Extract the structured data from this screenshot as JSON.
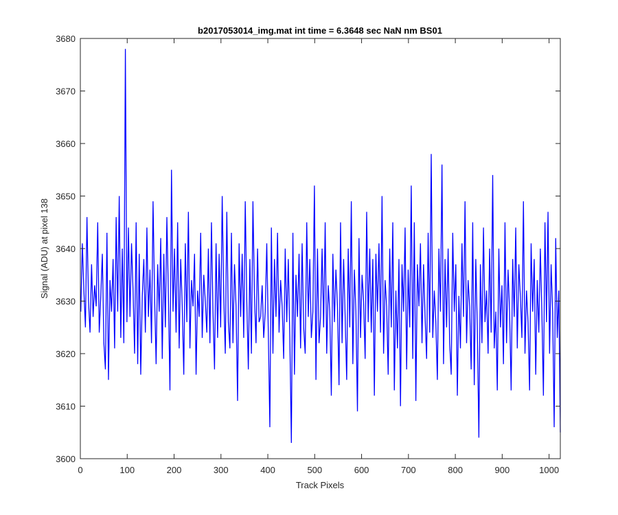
{
  "chart_data": {
    "type": "line",
    "title": "b2017053014_img.mat int time = 6.3648 sec  NaN nm BS01",
    "xlabel": "Track Pixels",
    "ylabel": "Signal (ADU) at pixel 138",
    "xlim": [
      0,
      1024
    ],
    "ylim": [
      3600,
      3680
    ],
    "xticks": [
      0,
      100,
      200,
      300,
      400,
      500,
      600,
      700,
      800,
      900,
      1000
    ],
    "yticks": [
      3600,
      3610,
      3620,
      3630,
      3640,
      3650,
      3660,
      3670,
      3680
    ],
    "grid": false,
    "legend": "none",
    "series_color": "#0000ff",
    "series": [
      {
        "x_start": 1,
        "x_step": 1,
        "values_note": "approximate noisy trace around 3630 ADU, sampled every ~4 pixels",
        "values": [
          3628,
          3641,
          3632,
          3625,
          3646,
          3630,
          3624,
          3637,
          3627,
          3633,
          3629,
          3645,
          3624,
          3631,
          3639,
          3622,
          3617,
          3643,
          3615,
          3634,
          3628,
          3638,
          3621,
          3646,
          3628,
          3650,
          3623,
          3640,
          3622,
          3678,
          3626,
          3644,
          3627,
          3641,
          3632,
          3620,
          3645,
          3618,
          3639,
          3616,
          3631,
          3638,
          3624,
          3644,
          3627,
          3636,
          3622,
          3649,
          3631,
          3618,
          3637,
          3628,
          3642,
          3619,
          3639,
          3625,
          3646,
          3631,
          3613,
          3655,
          3628,
          3640,
          3624,
          3645,
          3621,
          3638,
          3629,
          3616,
          3641,
          3626,
          3647,
          3621,
          3634,
          3629,
          3639,
          3616,
          3632,
          3627,
          3643,
          3623,
          3635,
          3630,
          3624,
          3640,
          3622,
          3645,
          3628,
          3617,
          3641,
          3623,
          3639,
          3625,
          3650,
          3631,
          3620,
          3647,
          3626,
          3621,
          3643,
          3622,
          3637,
          3629,
          3611,
          3641,
          3627,
          3639,
          3623,
          3649,
          3630,
          3617,
          3638,
          3620,
          3649,
          3631,
          3622,
          3640,
          3626,
          3627,
          3633,
          3623,
          3628,
          3641,
          3624,
          3606,
          3644,
          3620,
          3638,
          3627,
          3643,
          3624,
          3634,
          3629,
          3619,
          3640,
          3626,
          3638,
          3623,
          3603,
          3643,
          3616,
          3635,
          3627,
          3639,
          3621,
          3641,
          3625,
          3620,
          3645,
          3627,
          3638,
          3623,
          3628,
          3652,
          3615,
          3640,
          3622,
          3627,
          3640,
          3625,
          3645,
          3620,
          3633,
          3628,
          3612,
          3639,
          3626,
          3636,
          3629,
          3614,
          3645,
          3622,
          3638,
          3627,
          3615,
          3640,
          3625,
          3649,
          3618,
          3636,
          3628,
          3609,
          3642,
          3623,
          3635,
          3630,
          3619,
          3647,
          3626,
          3640,
          3624,
          3638,
          3612,
          3639,
          3628,
          3641,
          3624,
          3650,
          3620,
          3634,
          3629,
          3616,
          3640,
          3625,
          3645,
          3613,
          3632,
          3621,
          3638,
          3610,
          3637,
          3628,
          3644,
          3617,
          3636,
          3625,
          3652,
          3619,
          3645,
          3611,
          3637,
          3629,
          3641,
          3622,
          3637,
          3627,
          3619,
          3643,
          3624,
          3658,
          3623,
          3632,
          3626,
          3615,
          3640,
          3628,
          3656,
          3618,
          3638,
          3625,
          3640,
          3622,
          3616,
          3643,
          3628,
          3637,
          3612,
          3631,
          3621,
          3641,
          3627,
          3649,
          3622,
          3634,
          3629,
          3617,
          3645,
          3614,
          3638,
          3625,
          3604,
          3637,
          3622,
          3644,
          3626,
          3632,
          3620,
          3640,
          3624,
          3654,
          3621,
          3628,
          3613,
          3640,
          3625,
          3633,
          3618,
          3645,
          3622,
          3636,
          3628,
          3613,
          3638,
          3627,
          3644,
          3621,
          3637,
          3631,
          3623,
          3649,
          3620,
          3632,
          3626,
          3613,
          3641,
          3628,
          3638,
          3616,
          3634,
          3624,
          3640,
          3628,
          3612,
          3645,
          3626,
          3647,
          3620,
          3637,
          3628,
          3606,
          3642,
          3623,
          3632,
          3605
        ]
      }
    ]
  }
}
